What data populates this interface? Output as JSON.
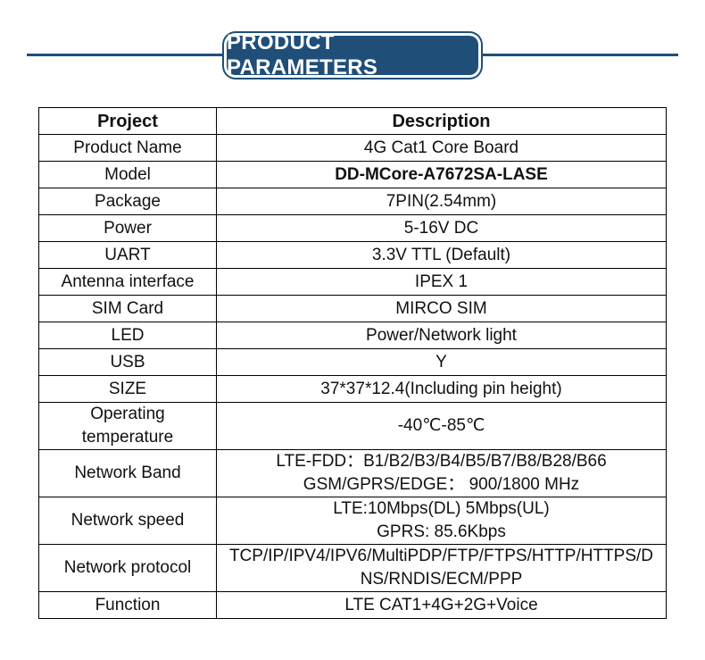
{
  "header": {
    "title": "PRODUCT PARAMETERS"
  },
  "table": {
    "columns": [
      "Project",
      "Description"
    ],
    "rows": [
      {
        "project": "Product Name",
        "description": [
          "4G Cat1 Core Board"
        ]
      },
      {
        "project": "Model",
        "description": [
          "DD-MCore-A7672SA-LASE"
        ]
      },
      {
        "project": "Package",
        "description": [
          "7PIN(2.54mm)"
        ]
      },
      {
        "project": "Power",
        "description": [
          "5-16V DC"
        ]
      },
      {
        "project": "UART",
        "description": [
          "3.3V TTL (Default)"
        ]
      },
      {
        "project": "Antenna interface",
        "description": [
          "IPEX 1"
        ]
      },
      {
        "project": "SIM Card",
        "description": [
          "MIRCO SIM"
        ]
      },
      {
        "project": "LED",
        "description": [
          "Power/Network light"
        ]
      },
      {
        "project": "USB",
        "description": [
          "Y"
        ]
      },
      {
        "project": "SIZE",
        "description": [
          "37*37*12.4(Including pin height)"
        ]
      },
      {
        "project": "Operating temperature",
        "project_lines": [
          "Operating",
          "temperature"
        ],
        "description": [
          "-40℃-85℃"
        ]
      },
      {
        "project": "Network Band",
        "description": [
          "LTE-FDD：B1/B2/B3/B4/B5/B7/B8/B28/B66",
          "GSM/GPRS/EDGE： 900/1800 MHz"
        ]
      },
      {
        "project": "Network speed",
        "description": [
          "LTE:10Mbps(DL)  5Mbps(UL)",
          "GPRS: 85.6Kbps"
        ]
      },
      {
        "project": "Network protocol",
        "description": [
          "TCP/IP/IPV4/IPV6/MultiPDP/FTP/FTPS/HTTP/HTTPS/D",
          "NS/RNDIS/ECM/PPP"
        ]
      },
      {
        "project": "Function",
        "description": [
          "LTE CAT1+4G+2G+Voice"
        ]
      }
    ]
  }
}
